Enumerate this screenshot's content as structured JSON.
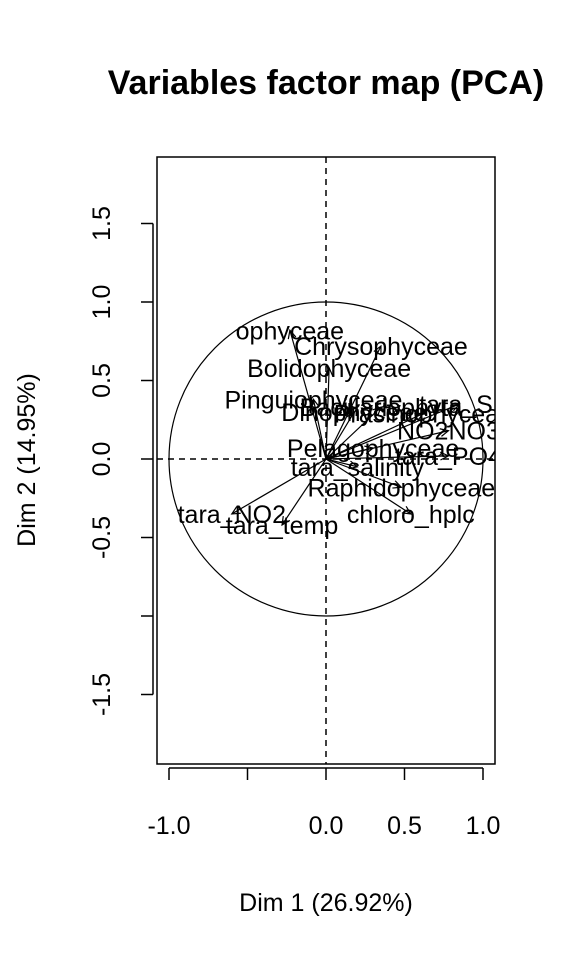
{
  "chart_data": {
    "type": "scatter",
    "subtype": "pca-variables-factor-map",
    "title": "Variables factor map (PCA)",
    "xlabel": "Dim 1 (26.92%)",
    "ylabel": "Dim 2 (14.95%)",
    "xlim": [
      -1.05,
      1.05
    ],
    "ylim": [
      -1.9,
      1.9
    ],
    "x_ticks": [
      -1.0,
      -0.5,
      0.0,
      0.5,
      1.0
    ],
    "x_tick_labels": [
      "-1.0",
      "",
      "0.0",
      "0.5",
      "1.0"
    ],
    "y_ticks": [
      -1.5,
      -1.0,
      -0.5,
      0.0,
      0.5,
      1.0,
      1.5
    ],
    "y_tick_labels": [
      "-1.5",
      "",
      "-0.5",
      "0.0",
      "0.5",
      "1.0",
      "1.5"
    ],
    "correlation_circle_radius": 1.0,
    "reference_lines": "dashed at x=0 and y=0",
    "variables": [
      {
        "name": "Chrysophyceae",
        "x": 0.35,
        "y": 0.72
      },
      {
        "name": "Bolidophyceae",
        "x": 0.02,
        "y": 0.58
      },
      {
        "name": "Bacillariophyta",
        "x": 0.35,
        "y": 0.33
      },
      {
        "name": "tara_SI",
        "x": 0.85,
        "y": 0.35
      },
      {
        "name": "Prasinophyceae",
        "x": 0.62,
        "y": 0.29
      },
      {
        "name": "Pinguiophyceae",
        "x": -0.08,
        "y": 0.38
      },
      {
        "name": "Dinophyceae",
        "x": 0.18,
        "y": 0.3
      },
      {
        "name": "NO2NO3",
        "x": 0.78,
        "y": 0.18
      },
      {
        "name": "Pelagophyceae",
        "x": 0.3,
        "y": 0.07
      },
      {
        "name": "tara_PO4",
        "x": 0.78,
        "y": 0.02
      },
      {
        "name": "tara_salinity",
        "x": 0.2,
        "y": -0.05
      },
      {
        "name": "Raphidophyceae",
        "x": 0.48,
        "y": -0.18
      },
      {
        "name": "tara_NO2",
        "x": -0.6,
        "y": -0.35
      },
      {
        "name": "tara_temp",
        "x": -0.28,
        "y": -0.42
      },
      {
        "name": "chloro_hplc",
        "x": 0.54,
        "y": -0.35
      },
      {
        "name": "ophyceae",
        "x": -0.23,
        "y": 0.82
      }
    ]
  }
}
